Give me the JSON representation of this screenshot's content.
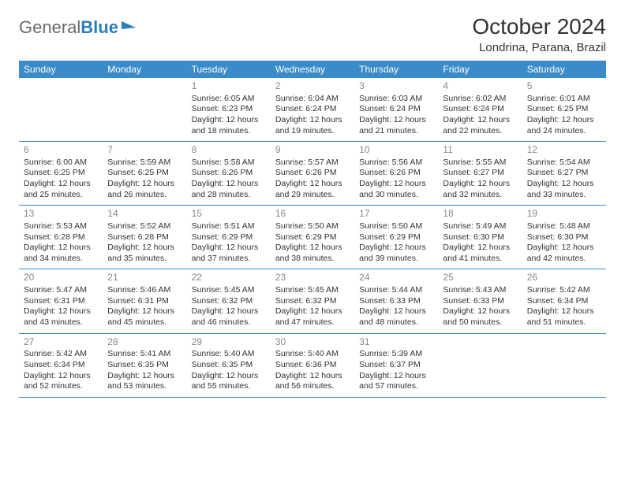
{
  "logo": {
    "word1": "General",
    "word2": "Blue"
  },
  "title": "October 2024",
  "location": "Londrina, Parana, Brazil",
  "colors": {
    "header_bg": "#3b8bc9",
    "header_text": "#ffffff",
    "border": "#3b8bc9",
    "daynum": "#888888",
    "text": "#333333",
    "logo_gray": "#6a6a6a",
    "logo_blue": "#2a7fba",
    "background": "#ffffff"
  },
  "typography": {
    "title_fontsize": 28,
    "location_fontsize": 15,
    "dayheader_fontsize": 12,
    "daynum_fontsize": 12,
    "body_fontsize": 10.5
  },
  "day_names": [
    "Sunday",
    "Monday",
    "Tuesday",
    "Wednesday",
    "Thursday",
    "Friday",
    "Saturday"
  ],
  "weeks": [
    [
      null,
      null,
      {
        "n": "1",
        "sr": "Sunrise: 6:05 AM",
        "ss": "Sunset: 6:23 PM",
        "d1": "Daylight: 12 hours",
        "d2": "and 18 minutes."
      },
      {
        "n": "2",
        "sr": "Sunrise: 6:04 AM",
        "ss": "Sunset: 6:24 PM",
        "d1": "Daylight: 12 hours",
        "d2": "and 19 minutes."
      },
      {
        "n": "3",
        "sr": "Sunrise: 6:03 AM",
        "ss": "Sunset: 6:24 PM",
        "d1": "Daylight: 12 hours",
        "d2": "and 21 minutes."
      },
      {
        "n": "4",
        "sr": "Sunrise: 6:02 AM",
        "ss": "Sunset: 6:24 PM",
        "d1": "Daylight: 12 hours",
        "d2": "and 22 minutes."
      },
      {
        "n": "5",
        "sr": "Sunrise: 6:01 AM",
        "ss": "Sunset: 6:25 PM",
        "d1": "Daylight: 12 hours",
        "d2": "and 24 minutes."
      }
    ],
    [
      {
        "n": "6",
        "sr": "Sunrise: 6:00 AM",
        "ss": "Sunset: 6:25 PM",
        "d1": "Daylight: 12 hours",
        "d2": "and 25 minutes."
      },
      {
        "n": "7",
        "sr": "Sunrise: 5:59 AM",
        "ss": "Sunset: 6:25 PM",
        "d1": "Daylight: 12 hours",
        "d2": "and 26 minutes."
      },
      {
        "n": "8",
        "sr": "Sunrise: 5:58 AM",
        "ss": "Sunset: 6:26 PM",
        "d1": "Daylight: 12 hours",
        "d2": "and 28 minutes."
      },
      {
        "n": "9",
        "sr": "Sunrise: 5:57 AM",
        "ss": "Sunset: 6:26 PM",
        "d1": "Daylight: 12 hours",
        "d2": "and 29 minutes."
      },
      {
        "n": "10",
        "sr": "Sunrise: 5:56 AM",
        "ss": "Sunset: 6:26 PM",
        "d1": "Daylight: 12 hours",
        "d2": "and 30 minutes."
      },
      {
        "n": "11",
        "sr": "Sunrise: 5:55 AM",
        "ss": "Sunset: 6:27 PM",
        "d1": "Daylight: 12 hours",
        "d2": "and 32 minutes."
      },
      {
        "n": "12",
        "sr": "Sunrise: 5:54 AM",
        "ss": "Sunset: 6:27 PM",
        "d1": "Daylight: 12 hours",
        "d2": "and 33 minutes."
      }
    ],
    [
      {
        "n": "13",
        "sr": "Sunrise: 5:53 AM",
        "ss": "Sunset: 6:28 PM",
        "d1": "Daylight: 12 hours",
        "d2": "and 34 minutes."
      },
      {
        "n": "14",
        "sr": "Sunrise: 5:52 AM",
        "ss": "Sunset: 6:28 PM",
        "d1": "Daylight: 12 hours",
        "d2": "and 35 minutes."
      },
      {
        "n": "15",
        "sr": "Sunrise: 5:51 AM",
        "ss": "Sunset: 6:29 PM",
        "d1": "Daylight: 12 hours",
        "d2": "and 37 minutes."
      },
      {
        "n": "16",
        "sr": "Sunrise: 5:50 AM",
        "ss": "Sunset: 6:29 PM",
        "d1": "Daylight: 12 hours",
        "d2": "and 38 minutes."
      },
      {
        "n": "17",
        "sr": "Sunrise: 5:50 AM",
        "ss": "Sunset: 6:29 PM",
        "d1": "Daylight: 12 hours",
        "d2": "and 39 minutes."
      },
      {
        "n": "18",
        "sr": "Sunrise: 5:49 AM",
        "ss": "Sunset: 6:30 PM",
        "d1": "Daylight: 12 hours",
        "d2": "and 41 minutes."
      },
      {
        "n": "19",
        "sr": "Sunrise: 5:48 AM",
        "ss": "Sunset: 6:30 PM",
        "d1": "Daylight: 12 hours",
        "d2": "and 42 minutes."
      }
    ],
    [
      {
        "n": "20",
        "sr": "Sunrise: 5:47 AM",
        "ss": "Sunset: 6:31 PM",
        "d1": "Daylight: 12 hours",
        "d2": "and 43 minutes."
      },
      {
        "n": "21",
        "sr": "Sunrise: 5:46 AM",
        "ss": "Sunset: 6:31 PM",
        "d1": "Daylight: 12 hours",
        "d2": "and 45 minutes."
      },
      {
        "n": "22",
        "sr": "Sunrise: 5:45 AM",
        "ss": "Sunset: 6:32 PM",
        "d1": "Daylight: 12 hours",
        "d2": "and 46 minutes."
      },
      {
        "n": "23",
        "sr": "Sunrise: 5:45 AM",
        "ss": "Sunset: 6:32 PM",
        "d1": "Daylight: 12 hours",
        "d2": "and 47 minutes."
      },
      {
        "n": "24",
        "sr": "Sunrise: 5:44 AM",
        "ss": "Sunset: 6:33 PM",
        "d1": "Daylight: 12 hours",
        "d2": "and 48 minutes."
      },
      {
        "n": "25",
        "sr": "Sunrise: 5:43 AM",
        "ss": "Sunset: 6:33 PM",
        "d1": "Daylight: 12 hours",
        "d2": "and 50 minutes."
      },
      {
        "n": "26",
        "sr": "Sunrise: 5:42 AM",
        "ss": "Sunset: 6:34 PM",
        "d1": "Daylight: 12 hours",
        "d2": "and 51 minutes."
      }
    ],
    [
      {
        "n": "27",
        "sr": "Sunrise: 5:42 AM",
        "ss": "Sunset: 6:34 PM",
        "d1": "Daylight: 12 hours",
        "d2": "and 52 minutes."
      },
      {
        "n": "28",
        "sr": "Sunrise: 5:41 AM",
        "ss": "Sunset: 6:35 PM",
        "d1": "Daylight: 12 hours",
        "d2": "and 53 minutes."
      },
      {
        "n": "29",
        "sr": "Sunrise: 5:40 AM",
        "ss": "Sunset: 6:35 PM",
        "d1": "Daylight: 12 hours",
        "d2": "and 55 minutes."
      },
      {
        "n": "30",
        "sr": "Sunrise: 5:40 AM",
        "ss": "Sunset: 6:36 PM",
        "d1": "Daylight: 12 hours",
        "d2": "and 56 minutes."
      },
      {
        "n": "31",
        "sr": "Sunrise: 5:39 AM",
        "ss": "Sunset: 6:37 PM",
        "d1": "Daylight: 12 hours",
        "d2": "and 57 minutes."
      },
      null,
      null
    ]
  ]
}
